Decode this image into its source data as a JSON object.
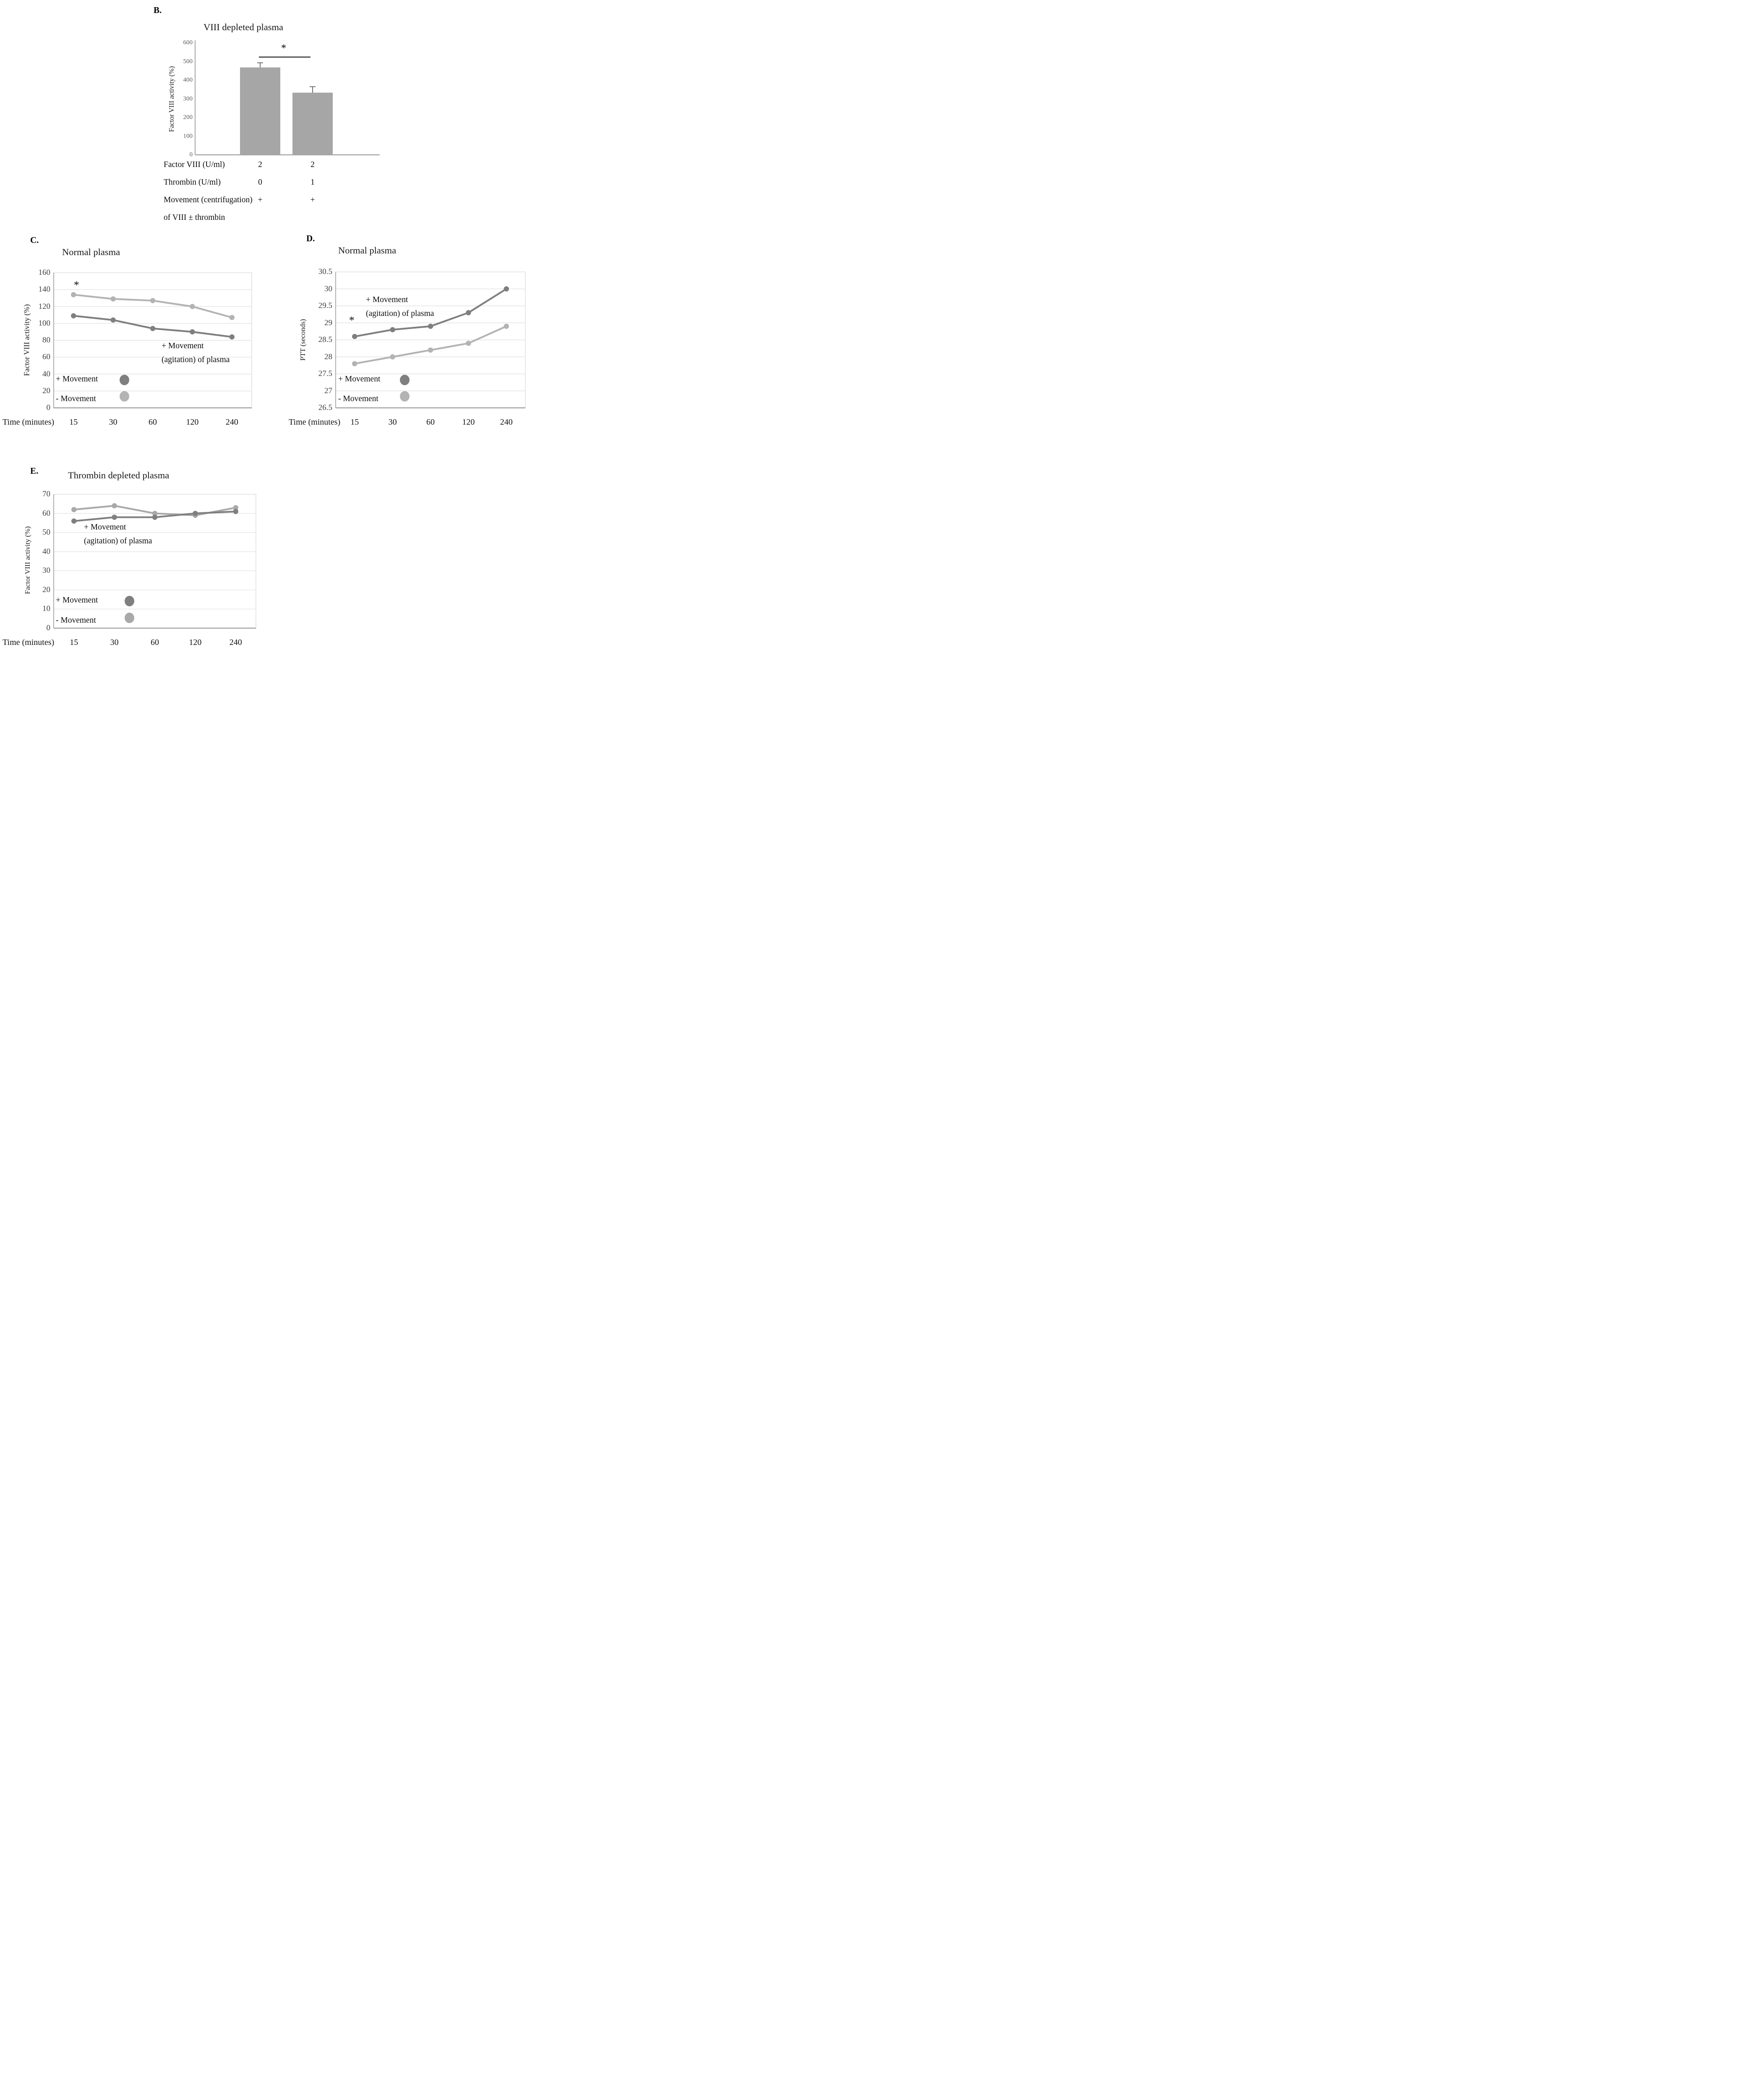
{
  "figure": {
    "background": "#ffffff",
    "dark_series_color": "#7f7f7f",
    "light_series_color": "#b3b3b3"
  },
  "chart_data": [
    {
      "id": "B",
      "type": "bar",
      "panel_label": "B.",
      "title": "VIII depleted plasma",
      "ylabel": "Factor VIII activity (%)",
      "ylim": [
        0,
        600
      ],
      "yticks": [
        0,
        100,
        200,
        300,
        400,
        500,
        600
      ],
      "categories": [
        "FVIII 2 U/ml + thrombin 0 U/ml",
        "FVIII 2 U/ml + thrombin 1 U/ml"
      ],
      "values": [
        468,
        333
      ],
      "error_plus": [
        25,
        32
      ],
      "bar_color": "#a6a6a6",
      "significance_star": "*",
      "grid": false,
      "table_rows": [
        {
          "label": "Factor VIII (U/ml)",
          "values": [
            "2",
            "2"
          ]
        },
        {
          "label": "Thrombin (U/ml)",
          "values": [
            "0",
            "1"
          ]
        },
        {
          "label": "Movement (centrifugation)",
          "values": [
            "+",
            "+"
          ]
        },
        {
          "label": "of VIII ± thrombin",
          "values": [
            "",
            ""
          ]
        }
      ]
    },
    {
      "id": "C",
      "type": "line",
      "panel_label": "C.",
      "title": "Normal plasma",
      "xlabel": "Time (minutes)",
      "ylabel": "Factor VIII  activity (%)",
      "categories": [
        "15",
        "30",
        "60",
        "120",
        "240"
      ],
      "ylim": [
        0,
        160
      ],
      "yticks": [
        0,
        20,
        40,
        60,
        80,
        100,
        120,
        140,
        160
      ],
      "grid": true,
      "series": [
        {
          "name": "+ Movement",
          "color": "#7f7f7f",
          "values": [
            109,
            104,
            94,
            90,
            84
          ]
        },
        {
          "name": "- Movement",
          "color": "#b3b3b3",
          "values": [
            134,
            129,
            127,
            120,
            107
          ]
        }
      ],
      "annotation_lines": [
        "+ Movement",
        "(agitation) of plasma"
      ],
      "star": "*",
      "legend_position": "lower-left"
    },
    {
      "id": "D",
      "type": "line",
      "panel_label": "D.",
      "title": "Normal plasma",
      "xlabel": "Time (minutes)",
      "ylabel": "PTT  (seconds)",
      "categories": [
        "15",
        "30",
        "60",
        "120",
        "240"
      ],
      "ylim": [
        26.5,
        30.5
      ],
      "yticks": [
        26.5,
        27,
        27.5,
        28,
        28.5,
        29,
        29.5,
        30,
        30.5
      ],
      "grid": true,
      "series": [
        {
          "name": "+ Movement",
          "color": "#7f7f7f",
          "values": [
            28.6,
            28.8,
            28.9,
            29.3,
            30.0
          ]
        },
        {
          "name": "- Movement",
          "color": "#b3b3b3",
          "values": [
            27.8,
            28.0,
            28.2,
            28.4,
            28.9
          ]
        }
      ],
      "annotation_lines": [
        "+ Movement",
        "(agitation) of plasma"
      ],
      "star": "*",
      "legend_position": "lower-left"
    },
    {
      "id": "E",
      "type": "line",
      "panel_label": "E.",
      "title": "Thrombin depleted plasma",
      "xlabel": "Time (minutes)",
      "ylabel": "Factor VIII activity  (%)",
      "categories": [
        "15",
        "30",
        "60",
        "120",
        "240"
      ],
      "ylim": [
        0,
        70
      ],
      "yticks": [
        0,
        10,
        20,
        30,
        40,
        50,
        60,
        70
      ],
      "grid": true,
      "series": [
        {
          "name": "+ Movement",
          "color": "#7f7f7f",
          "values": [
            56,
            58,
            58,
            60,
            61
          ]
        },
        {
          "name": "- Movement",
          "color": "#a9a9a9",
          "values": [
            62,
            64,
            60,
            59,
            63
          ]
        }
      ],
      "annotation_lines": [
        "+ Movement",
        "(agitation) of plasma"
      ],
      "star": "",
      "legend_position": "lower-left"
    }
  ]
}
